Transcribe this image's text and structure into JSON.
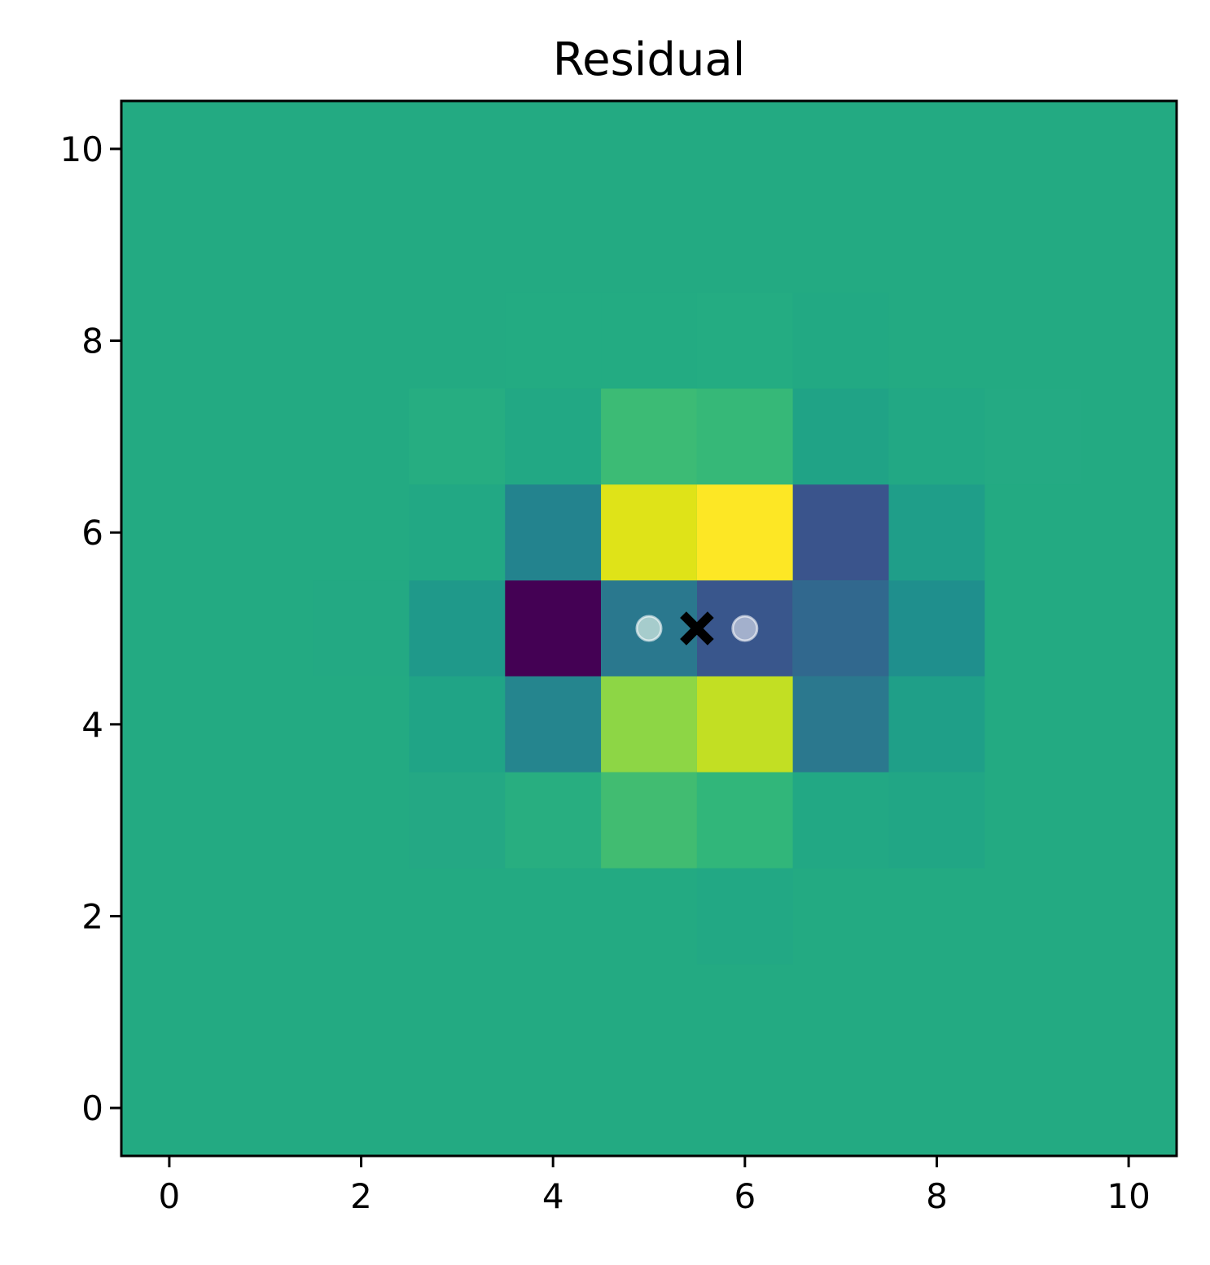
{
  "chart_data": {
    "type": "heatmap",
    "title": "Residual",
    "xlabel": "",
    "ylabel": "",
    "xlim": [
      -0.5,
      10.5
    ],
    "ylim": [
      -0.5,
      10.5
    ],
    "x_ticks": [
      0,
      2,
      4,
      6,
      8,
      10
    ],
    "y_ticks": [
      0,
      2,
      4,
      6,
      8,
      10
    ],
    "colormap": "viridis",
    "background_color": "#23aa82",
    "grid": false,
    "origin": "lower",
    "cells": [
      {
        "x": 4,
        "y": 8,
        "color": "#23ab82"
      },
      {
        "x": 5,
        "y": 8,
        "color": "#23ab82"
      },
      {
        "x": 6,
        "y": 8,
        "color": "#24ac82"
      },
      {
        "x": 7,
        "y": 8,
        "color": "#22a983"
      },
      {
        "x": 3,
        "y": 7,
        "color": "#26ad81"
      },
      {
        "x": 4,
        "y": 7,
        "color": "#22a884"
      },
      {
        "x": 5,
        "y": 7,
        "color": "#3cbb75"
      },
      {
        "x": 6,
        "y": 7,
        "color": "#36b878"
      },
      {
        "x": 7,
        "y": 7,
        "color": "#20a386"
      },
      {
        "x": 8,
        "y": 7,
        "color": "#22a884"
      },
      {
        "x": 9,
        "y": 7,
        "color": "#24aa83"
      },
      {
        "x": 3,
        "y": 6,
        "color": "#22a884"
      },
      {
        "x": 4,
        "y": 6,
        "color": "#23838e"
      },
      {
        "x": 5,
        "y": 6,
        "color": "#dfe318"
      },
      {
        "x": 6,
        "y": 6,
        "color": "#fde725"
      },
      {
        "x": 7,
        "y": 6,
        "color": "#3a548c"
      },
      {
        "x": 8,
        "y": 6,
        "color": "#1f9e89"
      },
      {
        "x": 2,
        "y": 5,
        "color": "#23a983"
      },
      {
        "x": 3,
        "y": 5,
        "color": "#1f998a"
      },
      {
        "x": 4,
        "y": 5,
        "color": "#440154"
      },
      {
        "x": 5,
        "y": 5,
        "color": "#2a788e"
      },
      {
        "x": 6,
        "y": 5,
        "color": "#39568c"
      },
      {
        "x": 7,
        "y": 5,
        "color": "#31688e"
      },
      {
        "x": 8,
        "y": 5,
        "color": "#1f8f8d"
      },
      {
        "x": 3,
        "y": 4,
        "color": "#20a486"
      },
      {
        "x": 4,
        "y": 4,
        "color": "#25858e"
      },
      {
        "x": 5,
        "y": 4,
        "color": "#8dd645"
      },
      {
        "x": 6,
        "y": 4,
        "color": "#c2df23"
      },
      {
        "x": 7,
        "y": 4,
        "color": "#2b788e"
      },
      {
        "x": 8,
        "y": 4,
        "color": "#1f9f88"
      },
      {
        "x": 3,
        "y": 3,
        "color": "#24a884"
      },
      {
        "x": 4,
        "y": 3,
        "color": "#28ae80"
      },
      {
        "x": 5,
        "y": 3,
        "color": "#41bc71"
      },
      {
        "x": 6,
        "y": 3,
        "color": "#31b67a"
      },
      {
        "x": 7,
        "y": 3,
        "color": "#22a884"
      },
      {
        "x": 8,
        "y": 3,
        "color": "#21a685"
      },
      {
        "x": 6,
        "y": 2,
        "color": "#22a884"
      }
    ],
    "markers": [
      {
        "type": "circle",
        "x": 5,
        "y": 5,
        "color": "#a6cccc"
      },
      {
        "type": "circle",
        "x": 6,
        "y": 5,
        "color": "#a3b0cc"
      },
      {
        "type": "x-filled",
        "x": 5.5,
        "y": 5,
        "color": "#000000"
      }
    ]
  }
}
